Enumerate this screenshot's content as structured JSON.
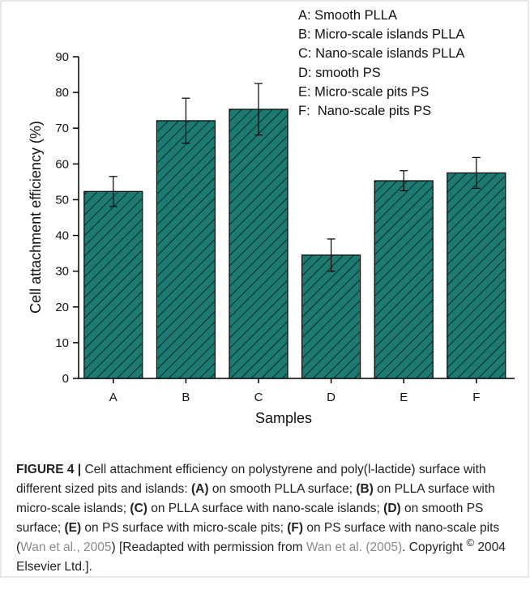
{
  "chart_data": {
    "type": "bar",
    "y_label": "Cell attachment efficiency (%)",
    "x_label": "Samples",
    "categories": [
      "A",
      "B",
      "C",
      "D",
      "E",
      "F"
    ],
    "values": [
      52.3,
      72.1,
      75.3,
      34.5,
      55.3,
      57.5
    ],
    "errors": [
      4.2,
      6.3,
      7.2,
      4.5,
      2.8,
      4.3
    ],
    "color": "#1d7a71",
    "hatch_color": "#000000",
    "ylim": [
      0,
      90
    ],
    "yticks": [
      0,
      10,
      20,
      30,
      40,
      50,
      60,
      70,
      80,
      90
    ],
    "annotations": [
      "A: Smooth PLLA",
      "B: Micro-scale islands PLLA",
      "C: Nano-scale islands PLLA",
      "D: smooth PS",
      "E: Micro-scale pits PS",
      "F:  Nano-scale pits PS"
    ]
  },
  "caption": {
    "label": "FIGURE 4 |",
    "segments": [
      {
        "text": " Cell attachment efficiency on polystyrene and poly(l-lactide) surface with different sized pits and islands: "
      },
      {
        "text": "(A)",
        "bold": true
      },
      {
        "text": " on smooth PLLA surface; "
      },
      {
        "text": "(B)",
        "bold": true
      },
      {
        "text": " on PLLA surface with micro-scale islands; "
      },
      {
        "text": "(C)",
        "bold": true
      },
      {
        "text": " on PLLA surface with nano-scale islands; "
      },
      {
        "text": "(D)",
        "bold": true
      },
      {
        "text": " on smooth PS surface; "
      },
      {
        "text": "(E)",
        "bold": true
      },
      {
        "text": " on PS surface with micro-scale pits; "
      },
      {
        "text": "(F)",
        "bold": true
      },
      {
        "text": " on PS surface with nano-scale pits ("
      },
      {
        "text": "Wan et al., 2005",
        "link": true
      },
      {
        "text": ") [Readapted with permission from "
      },
      {
        "text": "Wan et al. (2005)",
        "link": true
      },
      {
        "text": ". Copyright "
      },
      {
        "text": "©",
        "sup": true
      },
      {
        "text": " 2004 Elsevier Ltd.]."
      }
    ]
  }
}
